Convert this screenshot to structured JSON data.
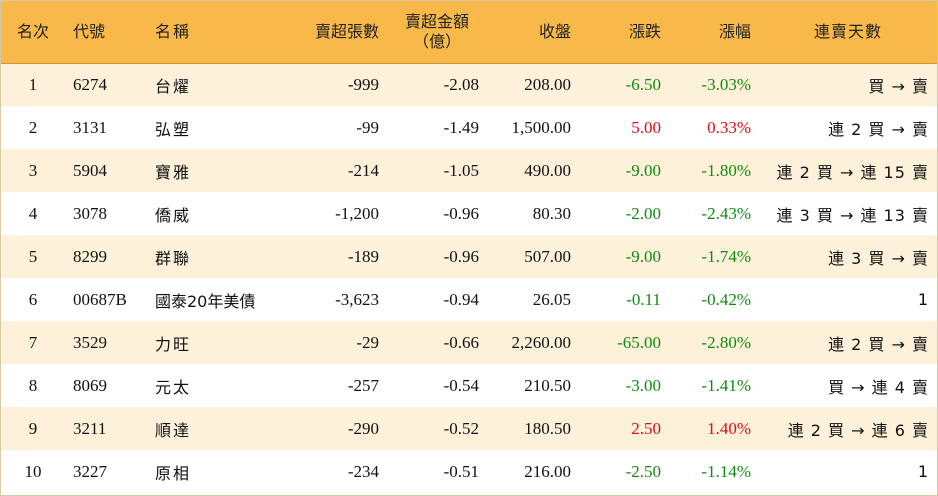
{
  "headers": {
    "rank": "名次",
    "code": "代號",
    "name": "名稱",
    "sell_lots": "賣超張數",
    "sell_amount_line1": "賣超金額",
    "sell_amount_line2": "（億）",
    "close": "收盤",
    "change": "漲跌",
    "change_pct": "漲幅",
    "streak": "連賣天數"
  },
  "colors": {
    "header_bg": "#f8b94a",
    "stripe_bg": "#fdf1da",
    "up": "#e0091a",
    "down": "#128a12"
  },
  "rows": [
    {
      "rank": "1",
      "code": "6274",
      "name": "台燿",
      "sell_lots": "-999",
      "sell_amount": "-2.08",
      "close": "208.00",
      "change": "-6.50",
      "change_pct": "-3.03%",
      "dir": "down",
      "streak": "買 → 賣"
    },
    {
      "rank": "2",
      "code": "3131",
      "name": "弘塑",
      "sell_lots": "-99",
      "sell_amount": "-1.49",
      "close": "1,500.00",
      "change": "5.00",
      "change_pct": "0.33%",
      "dir": "up",
      "streak": "連 2 買 → 賣"
    },
    {
      "rank": "3",
      "code": "5904",
      "name": "寶雅",
      "sell_lots": "-214",
      "sell_amount": "-1.05",
      "close": "490.00",
      "change": "-9.00",
      "change_pct": "-1.80%",
      "dir": "down",
      "streak": "連 2 買 → 連 15 賣"
    },
    {
      "rank": "4",
      "code": "3078",
      "name": "僑威",
      "sell_lots": "-1,200",
      "sell_amount": "-0.96",
      "close": "80.30",
      "change": "-2.00",
      "change_pct": "-2.43%",
      "dir": "down",
      "streak": "連 3 買 → 連 13 賣"
    },
    {
      "rank": "5",
      "code": "8299",
      "name": "群聯",
      "sell_lots": "-189",
      "sell_amount": "-0.96",
      "close": "507.00",
      "change": "-9.00",
      "change_pct": "-1.74%",
      "dir": "down",
      "streak": "連 3 買 → 賣"
    },
    {
      "rank": "6",
      "code": "00687B",
      "name": "國泰20年美債",
      "sell_lots": "-3,623",
      "sell_amount": "-0.94",
      "close": "26.05",
      "change": "-0.11",
      "change_pct": "-0.42%",
      "dir": "down",
      "streak": "1"
    },
    {
      "rank": "7",
      "code": "3529",
      "name": "力旺",
      "sell_lots": "-29",
      "sell_amount": "-0.66",
      "close": "2,260.00",
      "change": "-65.00",
      "change_pct": "-2.80%",
      "dir": "down",
      "streak": "連 2 買 → 賣"
    },
    {
      "rank": "8",
      "code": "8069",
      "name": "元太",
      "sell_lots": "-257",
      "sell_amount": "-0.54",
      "close": "210.50",
      "change": "-3.00",
      "change_pct": "-1.41%",
      "dir": "down",
      "streak": "買 → 連 4 賣"
    },
    {
      "rank": "9",
      "code": "3211",
      "name": "順達",
      "sell_lots": "-290",
      "sell_amount": "-0.52",
      "close": "180.50",
      "change": "2.50",
      "change_pct": "1.40%",
      "dir": "up",
      "streak": "連 2 買 → 連 6 賣"
    },
    {
      "rank": "10",
      "code": "3227",
      "name": "原相",
      "sell_lots": "-234",
      "sell_amount": "-0.51",
      "close": "216.00",
      "change": "-2.50",
      "change_pct": "-1.14%",
      "dir": "down",
      "streak": "1"
    }
  ]
}
